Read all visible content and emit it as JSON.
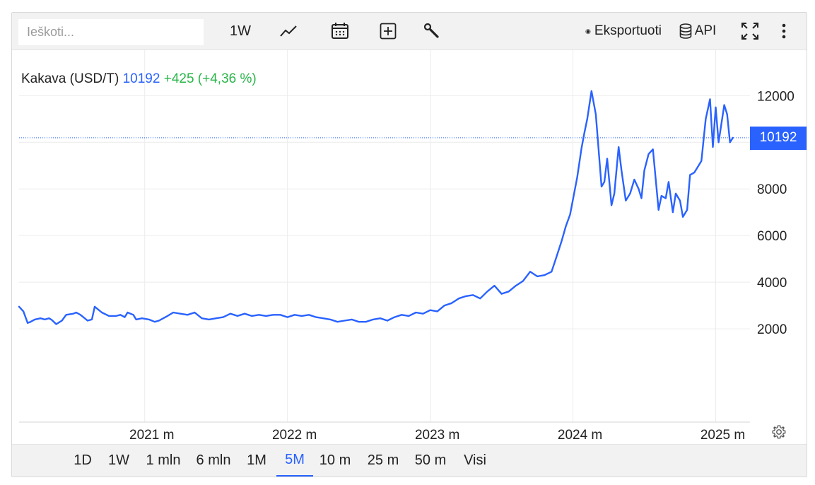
{
  "toolbar": {
    "search_placeholder": "Ieškoti...",
    "interval_label": "1W",
    "export_label": "Eksportuoti",
    "api_label": "API",
    "icons": [
      "line-chart-icon",
      "calendar-icon",
      "add-box-icon",
      "wrench-icon",
      "fullscreen-icon",
      "more-vertical-icon"
    ]
  },
  "legend": {
    "name": "Kakava (USD/T)",
    "value": "10192",
    "change": "+425 (+4,36 %)"
  },
  "price_tag": "10192",
  "colors": {
    "line": "#2962ff",
    "change_positive": "#2ab64a",
    "grid": "#ececec",
    "toolbar_bg": "#f2f2f2"
  },
  "ranges": {
    "items": [
      "1D",
      "1W",
      "1 mln",
      "6 mln",
      "1M",
      "5M",
      "10 m",
      "25 m",
      "50 m",
      "Visi"
    ],
    "active": "5M"
  },
  "chart_data": {
    "type": "line",
    "title": "Kakava (USD/T)",
    "xlabel": "",
    "ylabel": "",
    "x_ticks": [
      {
        "label": "2021 m",
        "value": 2021.0
      },
      {
        "label": "2022 m",
        "value": 2022.0
      },
      {
        "label": "2023 m",
        "value": 2023.0
      },
      {
        "label": "2024 m",
        "value": 2024.0
      },
      {
        "label": "2025 m",
        "value": 2025.0
      }
    ],
    "y_ticks": [
      2000,
      4000,
      6000,
      8000,
      10000,
      12000
    ],
    "y_tick_labels": [
      "2000",
      "4000",
      "6000",
      "8000",
      "",
      "12000"
    ],
    "xlim": [
      2020.12,
      2025.24
    ],
    "ylim": [
      -2000,
      13950
    ],
    "grid": true,
    "last_value": 10192,
    "series": [
      {
        "name": "Kakava (USD/T)",
        "x": [
          2020.12,
          2020.15,
          2020.18,
          2020.2,
          2020.23,
          2020.27,
          2020.3,
          2020.33,
          2020.35,
          2020.38,
          2020.42,
          2020.45,
          2020.5,
          2020.52,
          2020.55,
          2020.57,
          2020.6,
          2020.63,
          2020.65,
          2020.7,
          2020.75,
          2020.8,
          2020.83,
          2020.86,
          2020.88,
          2020.92,
          2020.94,
          2020.98,
          2021.03,
          2021.07,
          2021.1,
          2021.13,
          2021.16,
          2021.2,
          2021.25,
          2021.3,
          2021.35,
          2021.4,
          2021.45,
          2021.5,
          2021.55,
          2021.6,
          2021.65,
          2021.7,
          2021.75,
          2021.8,
          2021.85,
          2021.9,
          2021.95,
          2022.0,
          2022.05,
          2022.1,
          2022.15,
          2022.2,
          2022.25,
          2022.3,
          2022.35,
          2022.4,
          2022.45,
          2022.5,
          2022.55,
          2022.6,
          2022.65,
          2022.7,
          2022.75,
          2022.8,
          2022.85,
          2022.9,
          2022.95,
          2023.0,
          2023.05,
          2023.1,
          2023.15,
          2023.2,
          2023.25,
          2023.3,
          2023.35,
          2023.4,
          2023.45,
          2023.5,
          2023.55,
          2023.6,
          2023.65,
          2023.7,
          2023.75,
          2023.8,
          2023.85,
          2023.88,
          2023.92,
          2023.95,
          2023.98,
          2024.03,
          2024.06,
          2024.08,
          2024.1,
          2024.13,
          2024.16,
          2024.2,
          2024.22,
          2024.24,
          2024.27,
          2024.29,
          2024.32,
          2024.34,
          2024.37,
          2024.4,
          2024.43,
          2024.46,
          2024.48,
          2024.5,
          2024.53,
          2024.56,
          2024.6,
          2024.62,
          2024.65,
          2024.67,
          2024.7,
          2024.72,
          2024.75,
          2024.77,
          2024.8,
          2024.82,
          2024.85,
          2024.87,
          2024.9,
          2024.93,
          2024.96,
          2024.98,
          2025.0,
          2025.02,
          2025.04,
          2025.06,
          2025.08,
          2025.1,
          2025.12
        ],
        "y": [
          2950,
          2750,
          2250,
          2300,
          2400,
          2450,
          2400,
          2450,
          2380,
          2200,
          2350,
          2600,
          2650,
          2700,
          2600,
          2500,
          2350,
          2400,
          2950,
          2700,
          2550,
          2550,
          2600,
          2500,
          2700,
          2600,
          2400,
          2450,
          2400,
          2300,
          2350,
          2450,
          2550,
          2700,
          2650,
          2600,
          2700,
          2450,
          2400,
          2450,
          2500,
          2650,
          2550,
          2650,
          2550,
          2600,
          2550,
          2600,
          2600,
          2500,
          2600,
          2550,
          2600,
          2500,
          2450,
          2400,
          2300,
          2350,
          2400,
          2300,
          2300,
          2400,
          2450,
          2350,
          2500,
          2600,
          2550,
          2700,
          2650,
          2800,
          2750,
          3000,
          3100,
          3300,
          3400,
          3450,
          3300,
          3600,
          3850,
          3500,
          3600,
          3850,
          4050,
          4450,
          4250,
          4300,
          4450,
          5000,
          5750,
          6400,
          6900,
          8500,
          9750,
          10400,
          11000,
          12200,
          11200,
          8100,
          8300,
          9300,
          7300,
          7800,
          9800,
          8800,
          7500,
          7800,
          8400,
          8000,
          7600,
          8800,
          9500,
          9700,
          7100,
          7700,
          7600,
          8300,
          7000,
          7800,
          7500,
          6800,
          7100,
          8600,
          8700,
          8900,
          9200,
          11000,
          11850,
          9800,
          11500,
          10000,
          10800,
          11600,
          11200,
          10000,
          10192
        ]
      }
    ]
  }
}
